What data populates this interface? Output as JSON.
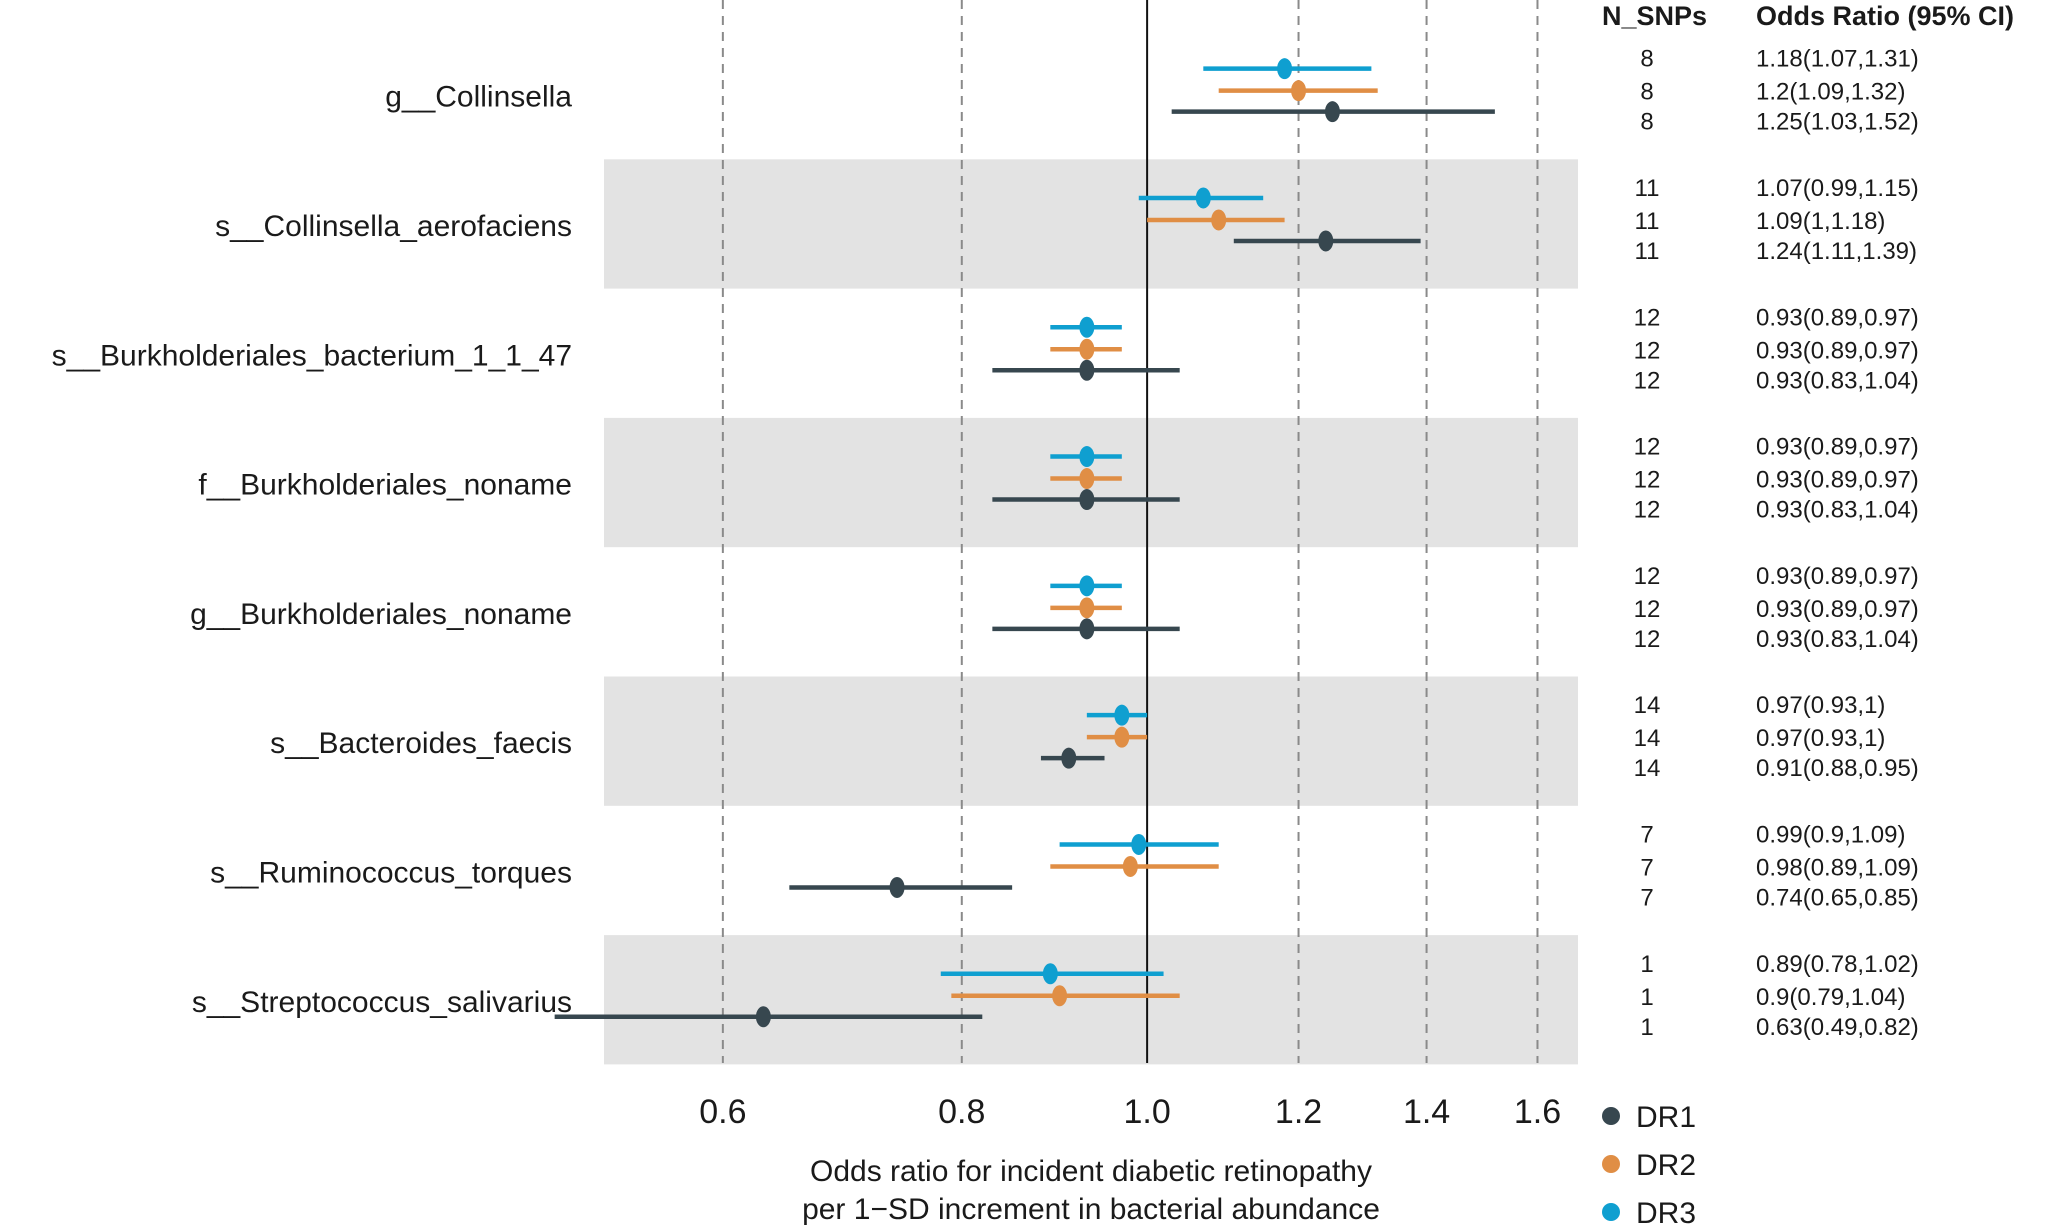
{
  "chart_data": {
    "type": "forest",
    "title": "",
    "xlabel_lines": [
      "Odds ratio for incident diabetic retinopathy",
      "per 1−SD increment in bacterial abundance"
    ],
    "x_scale": "log",
    "xlim": [
      0.52,
      1.68
    ],
    "x_ticks": [
      0.6,
      0.8,
      1.0,
      1.2,
      1.4,
      1.6
    ],
    "x_tick_labels": [
      "0.6",
      "0.8",
      "1.0",
      "1.2",
      "1.4",
      "1.6"
    ],
    "reference_line": 1.0,
    "grid": "dashed vertical at ticks",
    "column_headers": {
      "nsnps": "N_SNPs",
      "or": "Odds Ratio (95% CI)"
    },
    "legend_position": "bottom-right",
    "series": [
      {
        "name": "DR1",
        "color": "#37474f"
      },
      {
        "name": "DR2",
        "color": "#e08e45"
      },
      {
        "name": "DR3",
        "color": "#0f9fd0"
      }
    ],
    "rows": [
      {
        "label": "g__Collinsella",
        "shaded": false,
        "estimates": [
          {
            "series": "DR3",
            "or": 1.18,
            "lo": 1.07,
            "hi": 1.31,
            "n_snps": "8",
            "text": "1.18(1.07,1.31)"
          },
          {
            "series": "DR2",
            "or": 1.2,
            "lo": 1.09,
            "hi": 1.32,
            "n_snps": "8",
            "text": "1.2(1.09,1.32)"
          },
          {
            "series": "DR1",
            "or": 1.25,
            "lo": 1.03,
            "hi": 1.52,
            "n_snps": "8",
            "text": "1.25(1.03,1.52)"
          }
        ]
      },
      {
        "label": "s__Collinsella_aerofaciens",
        "shaded": true,
        "estimates": [
          {
            "series": "DR3",
            "or": 1.07,
            "lo": 0.99,
            "hi": 1.15,
            "n_snps": "11",
            "text": "1.07(0.99,1.15)"
          },
          {
            "series": "DR2",
            "or": 1.09,
            "lo": 1.0,
            "hi": 1.18,
            "n_snps": "11",
            "text": "1.09(1,1.18)"
          },
          {
            "series": "DR1",
            "or": 1.24,
            "lo": 1.11,
            "hi": 1.39,
            "n_snps": "11",
            "text": "1.24(1.11,1.39)"
          }
        ]
      },
      {
        "label": "s__Burkholderiales_bacterium_1_1_47",
        "shaded": false,
        "estimates": [
          {
            "series": "DR3",
            "or": 0.93,
            "lo": 0.89,
            "hi": 0.97,
            "n_snps": "12",
            "text": "0.93(0.89,0.97)"
          },
          {
            "series": "DR2",
            "or": 0.93,
            "lo": 0.89,
            "hi": 0.97,
            "n_snps": "12",
            "text": "0.93(0.89,0.97)"
          },
          {
            "series": "DR1",
            "or": 0.93,
            "lo": 0.83,
            "hi": 1.04,
            "n_snps": "12",
            "text": "0.93(0.83,1.04)"
          }
        ]
      },
      {
        "label": "f__Burkholderiales_noname",
        "shaded": true,
        "estimates": [
          {
            "series": "DR3",
            "or": 0.93,
            "lo": 0.89,
            "hi": 0.97,
            "n_snps": "12",
            "text": "0.93(0.89,0.97)"
          },
          {
            "series": "DR2",
            "or": 0.93,
            "lo": 0.89,
            "hi": 0.97,
            "n_snps": "12",
            "text": "0.93(0.89,0.97)"
          },
          {
            "series": "DR1",
            "or": 0.93,
            "lo": 0.83,
            "hi": 1.04,
            "n_snps": "12",
            "text": "0.93(0.83,1.04)"
          }
        ]
      },
      {
        "label": "g__Burkholderiales_noname",
        "shaded": false,
        "estimates": [
          {
            "series": "DR3",
            "or": 0.93,
            "lo": 0.89,
            "hi": 0.97,
            "n_snps": "12",
            "text": "0.93(0.89,0.97)"
          },
          {
            "series": "DR2",
            "or": 0.93,
            "lo": 0.89,
            "hi": 0.97,
            "n_snps": "12",
            "text": "0.93(0.89,0.97)"
          },
          {
            "series": "DR1",
            "or": 0.93,
            "lo": 0.83,
            "hi": 1.04,
            "n_snps": "12",
            "text": "0.93(0.83,1.04)"
          }
        ]
      },
      {
        "label": "s__Bacteroides_faecis",
        "shaded": true,
        "estimates": [
          {
            "series": "DR3",
            "or": 0.97,
            "lo": 0.93,
            "hi": 1.0,
            "n_snps": "14",
            "text": "0.97(0.93,1)"
          },
          {
            "series": "DR2",
            "or": 0.97,
            "lo": 0.93,
            "hi": 1.0,
            "n_snps": "14",
            "text": "0.97(0.93,1)"
          },
          {
            "series": "DR1",
            "or": 0.91,
            "lo": 0.88,
            "hi": 0.95,
            "n_snps": "14",
            "text": "0.91(0.88,0.95)"
          }
        ]
      },
      {
        "label": "s__Ruminococcus_torques",
        "shaded": false,
        "estimates": [
          {
            "series": "DR3",
            "or": 0.99,
            "lo": 0.9,
            "hi": 1.09,
            "n_snps": "7",
            "text": "0.99(0.9,1.09)"
          },
          {
            "series": "DR2",
            "or": 0.98,
            "lo": 0.89,
            "hi": 1.09,
            "n_snps": "7",
            "text": "0.98(0.89,1.09)"
          },
          {
            "series": "DR1",
            "or": 0.74,
            "lo": 0.65,
            "hi": 0.85,
            "n_snps": "7",
            "text": "0.74(0.65,0.85)"
          }
        ]
      },
      {
        "label": "s__Streptococcus_salivarius",
        "shaded": true,
        "estimates": [
          {
            "series": "DR3",
            "or": 0.89,
            "lo": 0.78,
            "hi": 1.02,
            "n_snps": "1",
            "text": "0.89(0.78,1.02)"
          },
          {
            "series": "DR2",
            "or": 0.9,
            "lo": 0.79,
            "hi": 1.04,
            "n_snps": "1",
            "text": "0.9(0.79,1.04)"
          },
          {
            "series": "DR1",
            "or": 0.63,
            "lo": 0.49,
            "hi": 0.82,
            "n_snps": "1",
            "text": "0.63(0.49,0.82)"
          }
        ]
      }
    ]
  }
}
